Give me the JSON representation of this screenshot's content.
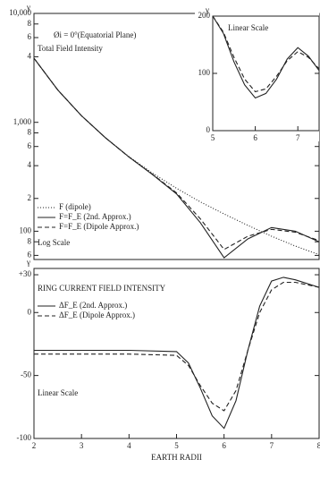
{
  "chart_data": [
    {
      "type": "line",
      "y_label": "γ",
      "log_y": true,
      "annotations": [
        "Øi = 0°(Equatorial Plane)",
        "Total Field Intensity",
        "Log Scale"
      ],
      "x": [
        2,
        2.5,
        3,
        3.5,
        4,
        4.5,
        5,
        5.5,
        6,
        6.5,
        7,
        7.5,
        8
      ],
      "xlim": [
        2,
        8
      ],
      "ylim": [
        55,
        10000
      ],
      "yticks": [
        {
          "value": 10000,
          "label": "10,000"
        },
        {
          "value": 8000,
          "label": "8"
        },
        {
          "value": 6000,
          "label": "6"
        },
        {
          "value": 4000,
          "label": "4"
        },
        {
          "value": 1000,
          "label": "1,000"
        },
        {
          "value": 800,
          "label": "8"
        },
        {
          "value": 600,
          "label": "6"
        },
        {
          "value": 400,
          "label": "4"
        },
        {
          "value": 200,
          "label": "2"
        },
        100,
        {
          "value": 80,
          "label": "8"
        },
        {
          "value": 60,
          "label": "6"
        }
      ],
      "series": [
        {
          "name": "F (dipole)",
          "color": "#222222",
          "dash": "dotted",
          "values": [
            3875,
            1984,
            1148,
            723,
            484,
            340,
            248,
            186,
            144,
            113,
            90,
            73,
            61
          ]
        },
        {
          "name": "F=F_E (2nd. Approx.)",
          "color": "#222222",
          "dash": "solid",
          "values": [
            3875,
            1984,
            1148,
            723,
            480,
            330,
            220,
            120,
            57,
            85,
            108,
            100,
            80
          ]
        },
        {
          "name": "F=F_E (Dipole Approx.)",
          "color": "#222222",
          "dash": "dashed",
          "values": [
            3875,
            1984,
            1148,
            723,
            480,
            332,
            225,
            130,
            68,
            90,
            104,
            98,
            82
          ]
        }
      ]
    },
    {
      "type": "line",
      "y_label": "γ",
      "log_y": false,
      "annotations": [
        "Linear Scale"
      ],
      "x": [
        5,
        5.25,
        5.5,
        5.75,
        6,
        6.25,
        6.5,
        6.75,
        7,
        7.25,
        7.5
      ],
      "xlim": [
        5,
        7.5
      ],
      "ylim": [
        0,
        200
      ],
      "xticks": [
        5,
        6,
        7
      ],
      "yticks": [
        0,
        100,
        200
      ],
      "series": [
        {
          "color": "#222222",
          "dash": "solid",
          "values": [
            200,
            170,
            120,
            80,
            57,
            65,
            90,
            125,
            145,
            130,
            105
          ]
        },
        {
          "color": "#222222",
          "dash": "dashed",
          "values": [
            200,
            172,
            128,
            90,
            68,
            73,
            95,
            122,
            138,
            128,
            108
          ]
        }
      ]
    },
    {
      "type": "line",
      "y_label": "γ",
      "log_y": false,
      "x_label": "EARTH RADII",
      "annotations": [
        "RING CURRENT FIELD INTENSITY",
        "Linear Scale"
      ],
      "x": [
        2,
        3,
        4,
        5,
        5.25,
        5.5,
        5.75,
        6,
        6.25,
        6.5,
        6.75,
        7,
        7.25,
        7.5,
        8
      ],
      "xlim": [
        2,
        8
      ],
      "ylim": [
        -100,
        35
      ],
      "xticks": [
        2,
        3,
        4,
        5,
        6,
        7,
        8
      ],
      "yticks": [
        {
          "value": 30,
          "label": "+30"
        },
        0,
        -50,
        -100
      ],
      "series": [
        {
          "name": "ΔF_E (2nd. Approx.)",
          "color": "#222222",
          "dash": "solid",
          "values": [
            -30,
            -30,
            -30,
            -31,
            -40,
            -60,
            -82,
            -92,
            -70,
            -30,
            5,
            25,
            28,
            26,
            20
          ]
        },
        {
          "name": "ΔF_E (Dipole Approx.)",
          "color": "#222222",
          "dash": "dashed",
          "values": [
            -33,
            -33,
            -33,
            -34,
            -42,
            -58,
            -72,
            -78,
            -62,
            -30,
            0,
            18,
            24,
            24,
            20
          ]
        }
      ]
    }
  ]
}
